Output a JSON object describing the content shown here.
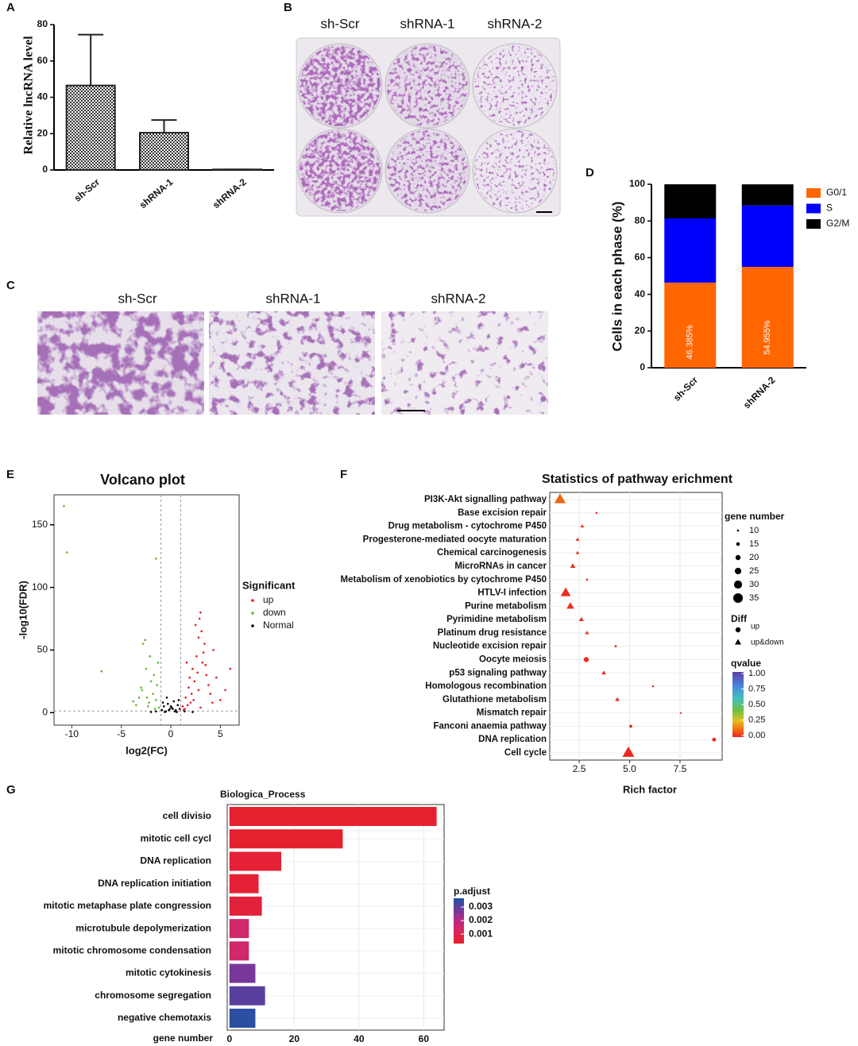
{
  "panel_b": {
    "label": "B",
    "columns": [
      "sh-Scr",
      "shRNA-1",
      "shRNA-2"
    ]
  },
  "panel_c": {
    "label": "C",
    "columns": [
      "sh-Scr",
      "shRNA-1",
      "shRNA-2"
    ]
  },
  "chart_data": [
    {
      "type": "bar",
      "label": "A",
      "ylabel": "Relative lncRNA level",
      "categories": [
        "sh-Scr",
        "shRNA-1",
        "shRNA-2"
      ],
      "values": [
        46.5,
        20.5,
        0.3
      ],
      "errors": [
        28,
        7,
        0
      ],
      "color": "#222222",
      "ylim": [
        0,
        80
      ],
      "yticks": [
        0,
        20,
        40,
        60,
        80
      ]
    },
    {
      "type": "stacked_bar",
      "label": "D",
      "ylabel": "Cells in each phase (%)",
      "categories": [
        "sh-Scr",
        "shRNA-2"
      ],
      "series": [
        {
          "name": "G0/1",
          "color": "#ff6600",
          "values": [
            46.385,
            54.955
          ],
          "value_labels": [
            "46.385%",
            "54.955%"
          ]
        },
        {
          "name": "S",
          "color": "#0000ff",
          "values": [
            35,
            33.5
          ]
        },
        {
          "name": "G2/M",
          "color": "#000000",
          "values": [
            18.6,
            11.5
          ]
        }
      ],
      "ylim": [
        0,
        100
      ],
      "yticks": [
        0,
        20,
        40,
        60,
        80,
        100
      ],
      "legend": "right"
    },
    {
      "type": "scatter",
      "label": "E",
      "title": "Volcano plot",
      "xlabel": "log2(FC)",
      "ylabel": "-log10(FDR)",
      "legend_title": "Significant",
      "series": [
        {
          "name": "up",
          "color": "#e41a1c",
          "x": [
            1.2,
            1.5,
            1.8,
            2.0,
            2.2,
            2.4,
            2.6,
            2.8,
            3.0,
            3.2,
            3.4,
            3.6,
            3.8,
            4.0,
            4.3,
            4.6,
            5.0,
            5.5,
            6.0,
            1.4,
            1.7,
            2.1,
            2.5,
            2.9,
            3.3,
            2.7,
            3.1,
            3.5,
            2.3,
            4.2,
            2.8,
            3.0,
            1.9,
            1.3,
            1.6
          ],
          "y": [
            5,
            12,
            20,
            8,
            35,
            25,
            45,
            60,
            80,
            40,
            55,
            30,
            22,
            15,
            50,
            28,
            10,
            18,
            35,
            3,
            6,
            15,
            70,
            75,
            48,
            32,
            65,
            38,
            10,
            8,
            18,
            4,
            28,
            2,
            40
          ]
        },
        {
          "name": "down",
          "color": "#5cb82e",
          "x": [
            -1.2,
            -1.5,
            -1.8,
            -2.0,
            -2.2,
            -2.5,
            -2.8,
            -3.0,
            -3.2,
            -3.5,
            -1.4,
            -1.7,
            -2.1,
            -2.6,
            -2.9,
            -1.6,
            -2.4,
            -10.8,
            -10.5,
            -7.0,
            -1.5,
            -2.3,
            -1.3,
            -3.8
          ],
          "y": [
            4,
            10,
            15,
            25,
            8,
            35,
            55,
            20,
            12,
            6,
            22,
            30,
            45,
            58,
            18,
            3,
            12,
            165,
            128,
            33,
            123,
            5,
            40,
            9
          ]
        },
        {
          "name": "Normal",
          "color": "#000000",
          "x": [
            -0.9,
            -0.7,
            -0.5,
            -0.3,
            -0.1,
            0.1,
            0.3,
            0.5,
            0.7,
            0.9,
            -0.8,
            -0.4,
            0,
            0.4,
            0.8,
            -0.6,
            -0.2,
            0.2,
            0.6,
            -1.5,
            1.4,
            -2.0,
            2.2
          ],
          "y": [
            2,
            5,
            1,
            7,
            3,
            4,
            9,
            2,
            6,
            3,
            8,
            12,
            5,
            1,
            10,
            0.5,
            2,
            3,
            0.5,
            1,
            1,
            0.5,
            0.5
          ]
        }
      ],
      "xlim": [
        -11.8,
        6.9
      ],
      "ylim": [
        -10,
        174
      ],
      "xticks": [
        -10,
        -5,
        0,
        5
      ],
      "yticks": [
        0,
        50,
        100,
        150
      ],
      "vlines": [
        -1,
        1
      ],
      "hline": 1.3
    },
    {
      "type": "bubble",
      "label": "F",
      "title": "Statistics of pathway erichment",
      "xlabel": "Rich factor",
      "categories": [
        "PI3K-Akt signalling pathway",
        "Base excision repair",
        "Drug metabolism - cytochrome P450",
        "Progesterone-mediated oocyte maturation",
        "Chemical carcinogenesis",
        "MicroRNAs in cancer",
        "Metabolism of xenobiotics by cytochrome P450",
        "HTLV-I infection",
        "Purine metabolism",
        "Pyrimidine metabolism",
        "Platinum drug resistance",
        "Nucleotide excision repair",
        "Oocyte meiosis",
        "p53 signaling pathway",
        "Homologous recombination",
        "Glutathione metabolism",
        "Mismatch repair",
        "Fanconi anaemia pathway",
        "DNA replication",
        "Cell cycle"
      ],
      "x": [
        1.55,
        3.36,
        2.65,
        2.42,
        2.42,
        2.18,
        2.89,
        1.83,
        2.06,
        2.61,
        2.89,
        4.31,
        2.85,
        3.72,
        6.16,
        4.39,
        7.54,
        5.06,
        9.19,
        4.94
      ],
      "sizes": [
        33,
        10,
        13,
        13,
        13,
        17,
        11,
        30,
        23,
        16,
        14,
        11,
        20,
        15,
        10,
        15,
        10,
        13,
        16,
        35
      ],
      "qvalues": [
        0.1,
        0.01,
        0.02,
        0.01,
        0.01,
        0.01,
        0.02,
        0.01,
        0.01,
        0.01,
        0.02,
        0.01,
        0.01,
        0.01,
        0.02,
        0.01,
        0.02,
        0.01,
        0.01,
        0.01
      ],
      "diff": [
        "up&down",
        "up",
        "up&down",
        "up&down",
        "up&down",
        "up&down",
        "up&down",
        "up&down",
        "up&down",
        "up&down",
        "up&down",
        "up",
        "up",
        "up&down",
        "up",
        "up&down",
        "up&down",
        "up",
        "up",
        "up&down"
      ],
      "xlim": [
        1.04,
        9.59
      ],
      "xticks": [
        2.5,
        {
          "value": 5,
          "label": "5.0"
        },
        7.5
      ],
      "size_legend_title": "gene number",
      "size_legend": [
        10,
        15,
        20,
        25,
        30,
        35
      ],
      "diff_legend_title": "Diff",
      "diff_legend": [
        "up",
        "up&down"
      ],
      "color_legend_title": "qvalue",
      "qlim": [
        0,
        1
      ],
      "qticks": [
        {
          "value": 1,
          "label": "1.00"
        },
        0.75,
        {
          "value": 0.5,
          "label": "0.50"
        },
        0.25,
        {
          "value": 0,
          "label": "0.00"
        }
      ]
    },
    {
      "type": "barh",
      "label": "G",
      "title": "Biologica_Process",
      "xlabel": "gene number",
      "categories": [
        "cell divisio",
        "mitotic cell cycl",
        "DNA replication",
        "DNA replication initiation",
        "mitotic metaphase plate congression",
        "microtubule depolymerization",
        "mitotic chromosome condensation",
        "mitotic cytokinesis",
        "chromosome segregation",
        "negative chemotaxis"
      ],
      "values": [
        64,
        35,
        16,
        9,
        10,
        6,
        6,
        8,
        11,
        8
      ],
      "padj": [
        0.0004,
        0.0004,
        0.0005,
        0.0005,
        0.0006,
        0.0015,
        0.0015,
        0.0027,
        0.003,
        0.0035
      ],
      "xlim": [
        -0.7,
        66.3
      ],
      "xticks": [
        0,
        20,
        40,
        60
      ],
      "grid": true,
      "color_legend_title": "p.adjust",
      "clim": [
        0.0003,
        0.00365
      ],
      "cticks": [
        0.003,
        0.002,
        0.001
      ]
    }
  ]
}
